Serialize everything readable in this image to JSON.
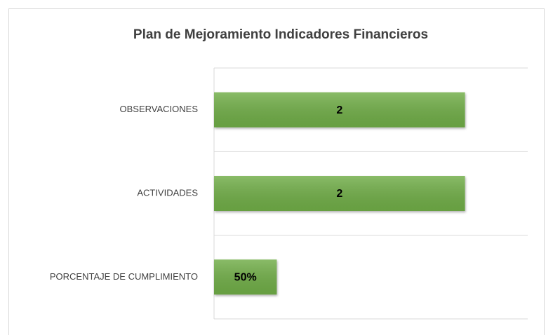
{
  "chart_data": {
    "type": "barh",
    "title": "Plan de Mejoramiento Indicadores Financieros",
    "categories": [
      "OBSERVACIONES",
      "ACTIVIDADES",
      "PORCENTAJE DE CUMPLIMIENTO"
    ],
    "values": [
      2,
      2,
      0.5
    ],
    "value_labels": [
      "2",
      "2",
      "50%"
    ],
    "color": "#70ad47",
    "xlim": [
      0,
      2.5
    ]
  }
}
